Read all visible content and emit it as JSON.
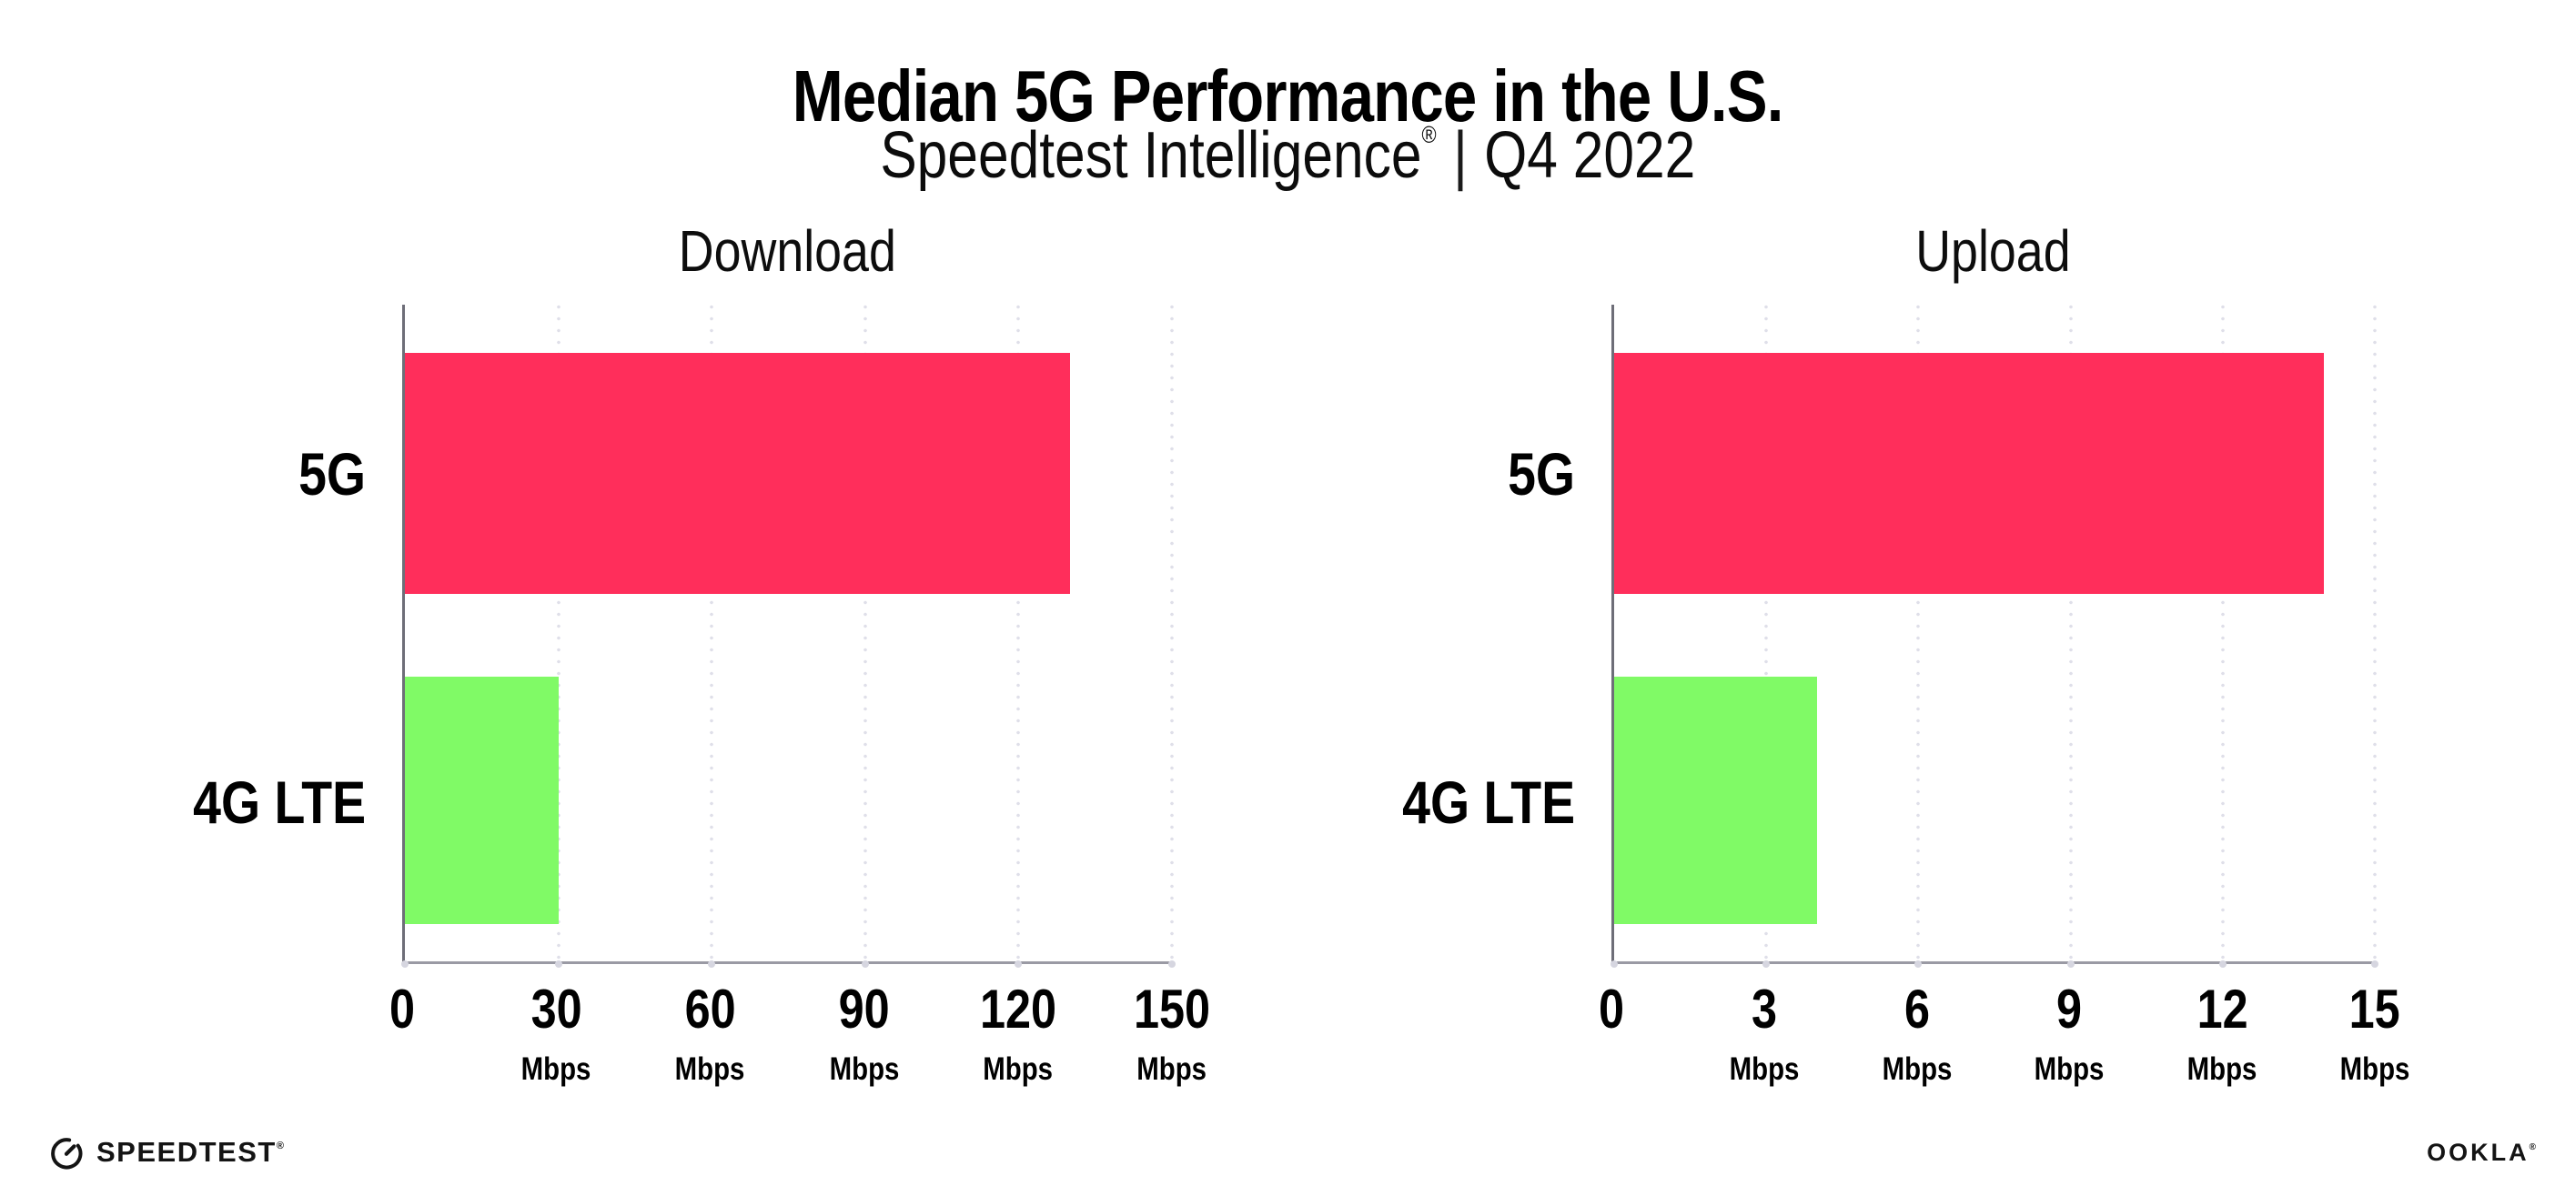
{
  "header": {
    "title": "Median 5G Performance in the U.S.",
    "subtitle_brand": "Speedtest Intelligence",
    "subtitle_registered": "®",
    "subtitle_separator": "|",
    "subtitle_period": "Q4 2022"
  },
  "chart_data": [
    {
      "type": "bar",
      "orientation": "horizontal",
      "title": "Download",
      "categories": [
        "5G",
        "4G LTE"
      ],
      "values": [
        130,
        30
      ],
      "unit": "Mbps",
      "xlim": [
        0,
        150
      ],
      "xticks": [
        0,
        30,
        60,
        90,
        120,
        150
      ],
      "tick_unit_label": "Mbps",
      "bar_colors": [
        "#ff2e5b",
        "#80fa66"
      ],
      "grid": "vertical-dotted",
      "legend": "none"
    },
    {
      "type": "bar",
      "orientation": "horizontal",
      "title": "Upload",
      "categories": [
        "5G",
        "4G LTE"
      ],
      "values": [
        14,
        4
      ],
      "unit": "Mbps",
      "xlim": [
        0,
        15
      ],
      "xticks": [
        0,
        3,
        6,
        9,
        12,
        15
      ],
      "tick_unit_label": "Mbps",
      "bar_colors": [
        "#ff2e5b",
        "#80fa66"
      ],
      "grid": "vertical-dotted",
      "legend": "none"
    }
  ],
  "colors": {
    "bar_5g": "#ff2e5b",
    "bar_4g_lte": "#80fa66",
    "axis_left": "#6e6e78",
    "axis_bottom": "#9a9aa4",
    "grid_dot": "#dfdfe9",
    "background": "#ffffff",
    "text": "#000000"
  },
  "footer": {
    "speedtest_icon": "gauge-icon",
    "speedtest_label": "SPEEDTEST",
    "speedtest_mark": "®",
    "ookla_label": "OOKLA",
    "ookla_mark": "®"
  }
}
